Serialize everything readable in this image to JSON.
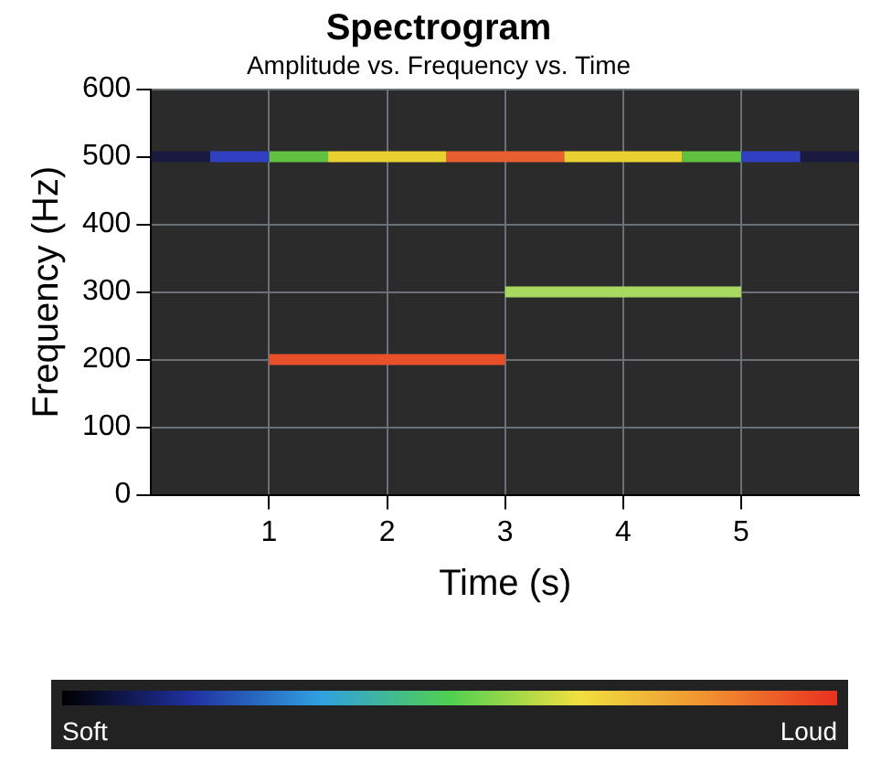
{
  "chart_data": {
    "type": "line",
    "title": "Spectrogram",
    "subtitle": "Amplitude vs. Frequency vs. Time",
    "xlabel": "Time (s)",
    "ylabel": "Frequency (Hz)",
    "xlim": [
      0,
      6
    ],
    "xticks": [
      1,
      2,
      3,
      4,
      5
    ],
    "ylim": [
      0,
      600
    ],
    "yticks": [
      0,
      100,
      200,
      300,
      400,
      500,
      600
    ],
    "grid": true,
    "marker": "none",
    "line_style": "solid",
    "series": [
      {
        "color": "#1a1a40",
        "x": [
          0,
          0.5
        ],
        "values": [
          500,
          500
        ]
      },
      {
        "color": "#3040c0",
        "x": [
          0.5,
          1
        ],
        "values": [
          500,
          500
        ]
      },
      {
        "color": "#60c040",
        "x": [
          1,
          1.5
        ],
        "values": [
          500,
          500
        ]
      },
      {
        "color": "#e8d030",
        "x": [
          1.5,
          2.5
        ],
        "values": [
          500,
          500
        ]
      },
      {
        "color": "#e86030",
        "x": [
          2.5,
          3.5
        ],
        "values": [
          500,
          500
        ]
      },
      {
        "color": "#e8d030",
        "x": [
          3.5,
          4.5
        ],
        "values": [
          500,
          500
        ]
      },
      {
        "color": "#60c040",
        "x": [
          4.5,
          5
        ],
        "values": [
          500,
          500
        ]
      },
      {
        "color": "#3040c0",
        "x": [
          5,
          5.5
        ],
        "values": [
          500,
          500
        ]
      },
      {
        "color": "#1a1a40",
        "x": [
          5.5,
          6
        ],
        "values": [
          500,
          500
        ]
      },
      {
        "color": "#e8502a",
        "x": [
          1,
          3
        ],
        "values": [
          200,
          200
        ]
      },
      {
        "color": "#a8d860",
        "x": [
          3,
          5
        ],
        "values": [
          300,
          300
        ]
      }
    ],
    "annotations": [
      "Soft",
      "Loud"
    ]
  }
}
